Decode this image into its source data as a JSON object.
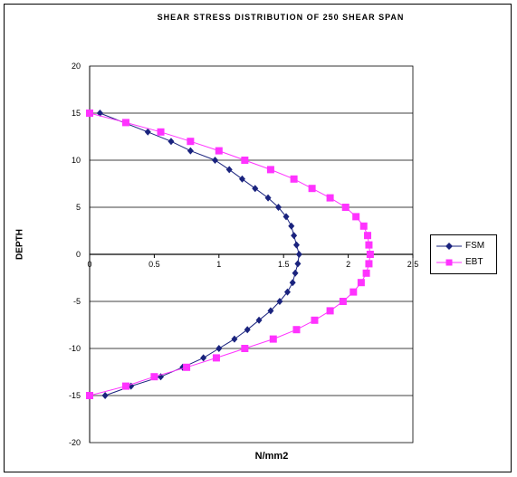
{
  "chart_data": {
    "type": "scatter",
    "title": "SHEAR STRESS DISTRIBUTION OF 250 SHEAR SPAN",
    "xlabel": "N/mm2",
    "ylabel": "DEPTH",
    "xlim": [
      0,
      2.5
    ],
    "ylim": [
      -20,
      20
    ],
    "x_ticks": [
      "0",
      "0.5",
      "1",
      "1.5",
      "2",
      "2.5"
    ],
    "y_ticks": [
      "20",
      "15",
      "10",
      "5",
      "0",
      "-5",
      "-10",
      "-15",
      "-20"
    ],
    "grid": "horizontal",
    "legend_position": "right",
    "series": [
      {
        "name": "FSM",
        "color": "#1a237e",
        "marker": "diamond",
        "points": [
          [
            0.08,
            15
          ],
          [
            0.45,
            13
          ],
          [
            0.63,
            12
          ],
          [
            0.78,
            11
          ],
          [
            0.97,
            10
          ],
          [
            1.08,
            9
          ],
          [
            1.18,
            8
          ],
          [
            1.28,
            7
          ],
          [
            1.38,
            6
          ],
          [
            1.46,
            5
          ],
          [
            1.52,
            4
          ],
          [
            1.56,
            3
          ],
          [
            1.58,
            2
          ],
          [
            1.6,
            1
          ],
          [
            1.62,
            0
          ],
          [
            1.61,
            -1
          ],
          [
            1.59,
            -2
          ],
          [
            1.57,
            -3
          ],
          [
            1.53,
            -4
          ],
          [
            1.47,
            -5
          ],
          [
            1.4,
            -6
          ],
          [
            1.31,
            -7
          ],
          [
            1.22,
            -8
          ],
          [
            1.12,
            -9
          ],
          [
            1.0,
            -10
          ],
          [
            0.88,
            -11
          ],
          [
            0.72,
            -12
          ],
          [
            0.55,
            -13
          ],
          [
            0.32,
            -14
          ],
          [
            0.12,
            -15
          ]
        ]
      },
      {
        "name": "EBT",
        "color": "#ff33ff",
        "marker": "square",
        "points": [
          [
            0.0,
            15
          ],
          [
            0.28,
            14
          ],
          [
            0.55,
            13
          ],
          [
            0.78,
            12
          ],
          [
            1.0,
            11
          ],
          [
            1.2,
            10
          ],
          [
            1.4,
            9
          ],
          [
            1.58,
            8
          ],
          [
            1.72,
            7
          ],
          [
            1.86,
            6
          ],
          [
            1.98,
            5
          ],
          [
            2.06,
            4
          ],
          [
            2.12,
            3
          ],
          [
            2.15,
            2
          ],
          [
            2.16,
            1
          ],
          [
            2.17,
            0
          ],
          [
            2.16,
            -1
          ],
          [
            2.14,
            -2
          ],
          [
            2.1,
            -3
          ],
          [
            2.04,
            -4
          ],
          [
            1.96,
            -5
          ],
          [
            1.86,
            -6
          ],
          [
            1.74,
            -7
          ],
          [
            1.6,
            -8
          ],
          [
            1.42,
            -9
          ],
          [
            1.2,
            -10
          ],
          [
            0.98,
            -11
          ],
          [
            0.75,
            -12
          ],
          [
            0.5,
            -13
          ],
          [
            0.28,
            -14
          ],
          [
            0.0,
            -15
          ]
        ]
      }
    ]
  }
}
